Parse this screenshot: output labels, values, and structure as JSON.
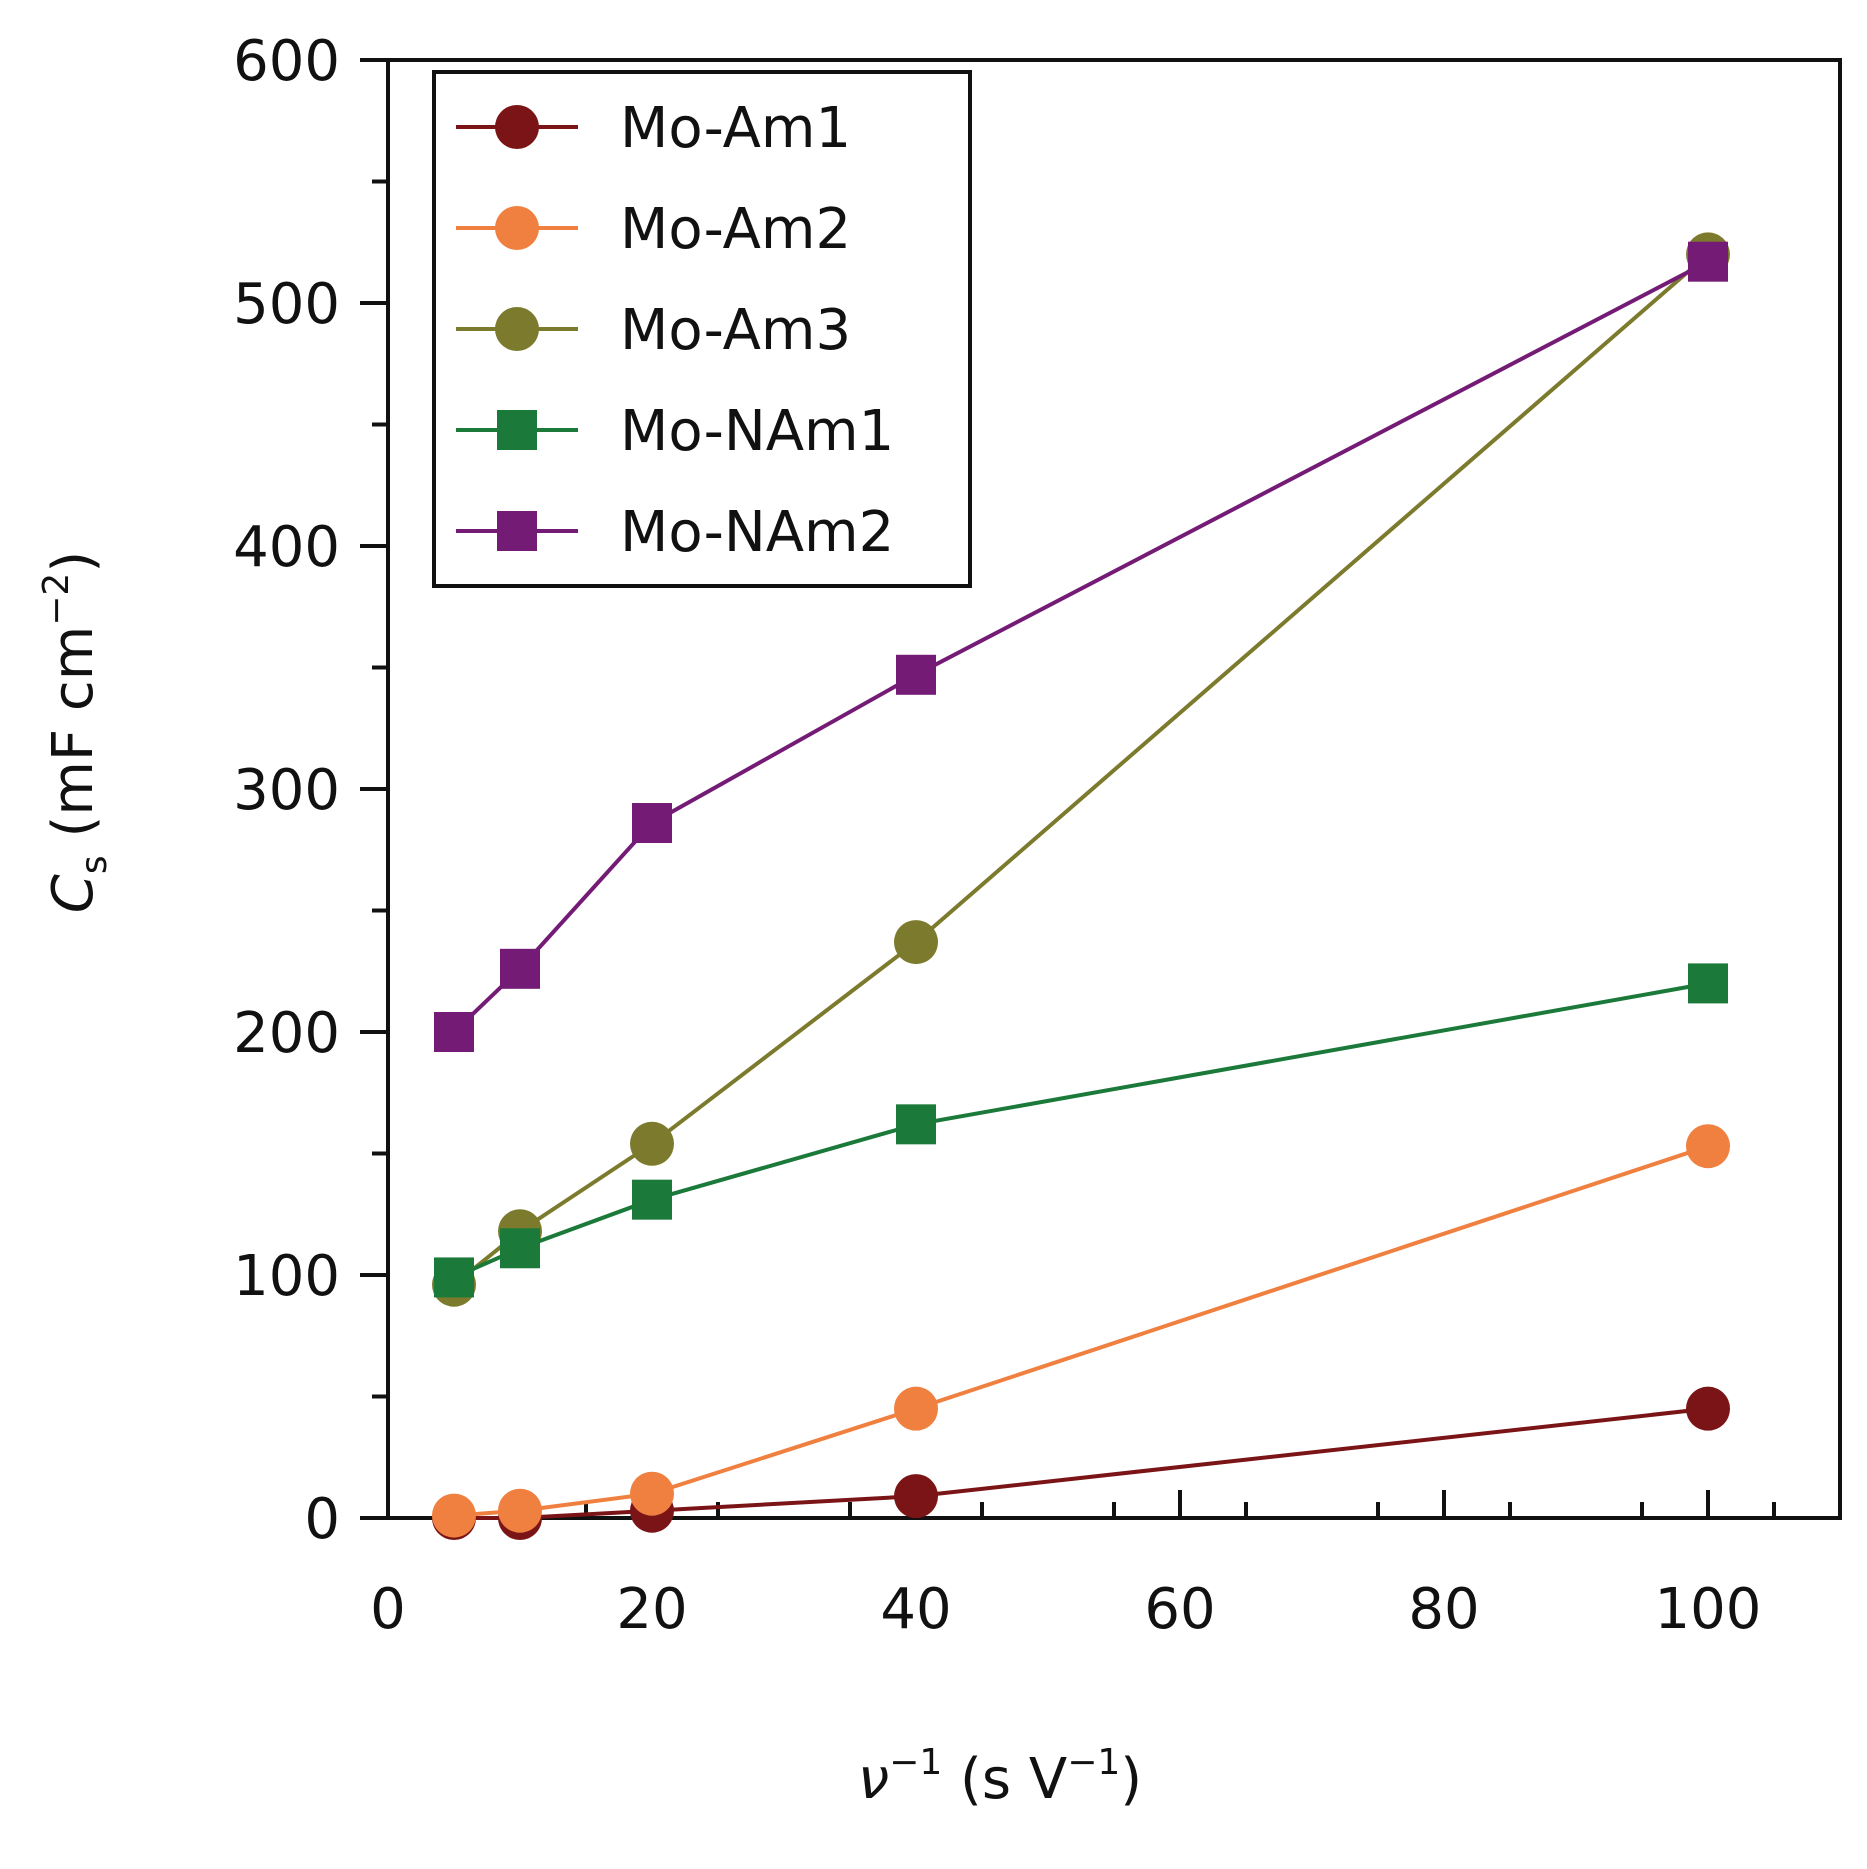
{
  "chart_data": {
    "type": "line",
    "title": "",
    "xlabel": {
      "symbol": "ν",
      "exp": "−1",
      "unit_open": "(s V",
      "unit_exp": "−1",
      "unit_close": ")"
    },
    "ylabel": {
      "symbol": "C",
      "sub": "s",
      "unit": "(mF cm",
      "unit_exp": "−2",
      "unit_close": ")"
    },
    "xlim": [
      0,
      110
    ],
    "ylim": [
      0,
      600
    ],
    "xticks": [
      0,
      20,
      40,
      60,
      80,
      100
    ],
    "yticks": [
      0,
      100,
      200,
      300,
      400,
      500,
      600
    ],
    "x": [
      5,
      10,
      20,
      40,
      100
    ],
    "legend_position": "top-left",
    "series": [
      {
        "name": "Mo-Am1",
        "marker": "circle",
        "color": "#7b1416",
        "values": [
          0,
          0,
          3,
          9,
          45
        ]
      },
      {
        "name": "Mo-Am2",
        "marker": "circle",
        "color": "#f08040",
        "values": [
          1,
          3,
          10,
          45,
          153
        ]
      },
      {
        "name": "Mo-Am3",
        "marker": "circle",
        "color": "#7c7a2c",
        "values": [
          96,
          118,
          154,
          237,
          520
        ]
      },
      {
        "name": "Mo-NAm1",
        "marker": "square",
        "color": "#1b7a3a",
        "values": [
          99,
          111,
          131,
          162,
          220
        ]
      },
      {
        "name": "Mo-NAm2",
        "marker": "square",
        "color": "#741b76",
        "values": [
          200,
          226,
          286,
          347,
          517
        ]
      }
    ]
  }
}
